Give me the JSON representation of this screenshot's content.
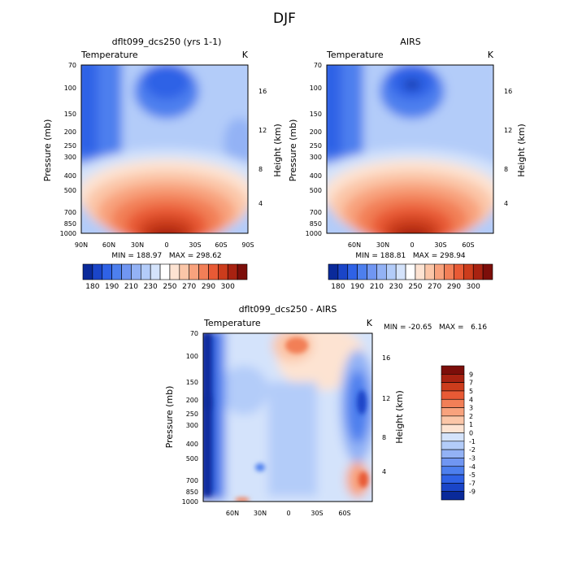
{
  "figure": {
    "title": "DJF"
  },
  "chart_data": [
    {
      "type": "heatmap",
      "title": "dflt099_dcs250 (yrs 1-1)",
      "field_label": "Temperature",
      "units": "K",
      "ylabel": "Pressure (mb)",
      "y2label": "Height (km)",
      "xticks": [
        "90N",
        "60N",
        "30N",
        "0",
        "30S",
        "60S",
        "90S"
      ],
      "yticks": [
        "70",
        "100",
        "150",
        "200",
        "250",
        "300",
        "400",
        "500",
        "700",
        "850",
        "1000"
      ],
      "y2ticks": [
        "4",
        "8",
        "12",
        "16"
      ],
      "stats": "MIN = 188.97   MAX = 298.62",
      "colorbar_labels": [
        "180",
        "190",
        "210",
        "230",
        "250",
        "270",
        "290",
        "300"
      ],
      "colors": [
        "#0a2a9a",
        "#1a45c8",
        "#2f62e6",
        "#4d7fee",
        "#7096f2",
        "#93b2f5",
        "#b3ccf9",
        "#d4e3fb",
        "#ffffff",
        "#fde3d2",
        "#fbc6a8",
        "#f8a27d",
        "#f27f57",
        "#e85a35",
        "#cc3c1c",
        "#a82211",
        "#7c0e0a"
      ]
    },
    {
      "type": "heatmap",
      "title": "AIRS",
      "field_label": "Temperature",
      "units": "K",
      "ylabel": "Pressure (mb)",
      "y2label": "Height (km)",
      "xticks": [
        "60N",
        "30N",
        "0",
        "30S",
        "60S"
      ],
      "yticks": [
        "70",
        "100",
        "150",
        "200",
        "250",
        "300",
        "400",
        "500",
        "700",
        "850",
        "1000"
      ],
      "y2ticks": [
        "4",
        "8",
        "12",
        "16"
      ],
      "stats": "MIN = 188.81   MAX = 298.94",
      "colorbar_labels": [
        "180",
        "190",
        "210",
        "230",
        "250",
        "270",
        "290",
        "300"
      ]
    },
    {
      "type": "heatmap",
      "title": "dflt099_dcs250 - AIRS",
      "field_label": "Temperature",
      "units": "K",
      "ylabel": "Pressure (mb)",
      "y2label": "Height (km)",
      "xticks": [
        "60N",
        "30N",
        "0",
        "30S",
        "60S"
      ],
      "yticks": [
        "70",
        "100",
        "150",
        "200",
        "250",
        "300",
        "400",
        "500",
        "700",
        "850",
        "1000"
      ],
      "y2ticks": [
        "4",
        "8",
        "12",
        "16"
      ],
      "stats": "MIN = -20.65   MAX =   6.16",
      "colorbar_labels": [
        "9",
        "7",
        "5",
        "4",
        "3",
        "2",
        "1",
        "0",
        "-1",
        "-2",
        "-3",
        "-4",
        "-5",
        "-7",
        "-9"
      ],
      "colors": [
        "#7c0e0a",
        "#a82211",
        "#cc3c1c",
        "#e85a35",
        "#f27f57",
        "#f8a27d",
        "#fbc6a8",
        "#fde3d2",
        "#d4e3fb",
        "#b3ccf9",
        "#93b2f5",
        "#7096f2",
        "#4d7fee",
        "#2f62e6",
        "#1a45c8",
        "#0a2a9a"
      ]
    }
  ]
}
